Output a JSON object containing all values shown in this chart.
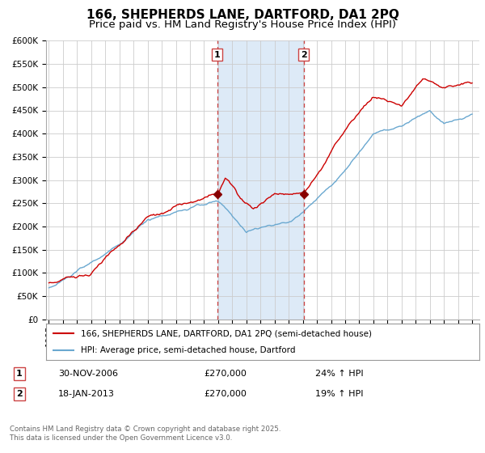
{
  "title": "166, SHEPHERDS LANE, DARTFORD, DA1 2PQ",
  "subtitle": "Price paid vs. HM Land Registry's House Price Index (HPI)",
  "ylim": [
    0,
    600000
  ],
  "yticks": [
    0,
    50000,
    100000,
    150000,
    200000,
    250000,
    300000,
    350000,
    400000,
    450000,
    500000,
    550000,
    600000
  ],
  "xlim_start": 1994.8,
  "xlim_end": 2025.5,
  "xticks": [
    1995,
    1996,
    1997,
    1998,
    1999,
    2000,
    2001,
    2002,
    2003,
    2004,
    2005,
    2006,
    2007,
    2008,
    2009,
    2010,
    2011,
    2012,
    2013,
    2014,
    2015,
    2016,
    2017,
    2018,
    2019,
    2020,
    2021,
    2022,
    2023,
    2024,
    2025
  ],
  "sale1_date": 2006.92,
  "sale1_price": 270000,
  "sale1_label": "1",
  "sale2_date": 2013.05,
  "sale2_price": 270000,
  "sale2_label": "2",
  "shaded_color": "#ddeaf7",
  "vline_color": "#cc4444",
  "red_line_color": "#cc0000",
  "blue_line_color": "#6aa8d0",
  "legend_label_red": "166, SHEPHERDS LANE, DARTFORD, DA1 2PQ (semi-detached house)",
  "legend_label_blue": "HPI: Average price, semi-detached house, Dartford",
  "annotation1_date": "30-NOV-2006",
  "annotation1_price": "£270,000",
  "annotation1_hpi": "24% ↑ HPI",
  "annotation2_date": "18-JAN-2013",
  "annotation2_price": "£270,000",
  "annotation2_hpi": "19% ↑ HPI",
  "footer": "Contains HM Land Registry data © Crown copyright and database right 2025.\nThis data is licensed under the Open Government Licence v3.0.",
  "background_color": "#ffffff",
  "grid_color": "#cccccc",
  "title_fontsize": 11,
  "subtitle_fontsize": 9.5,
  "tick_fontsize": 7.5
}
